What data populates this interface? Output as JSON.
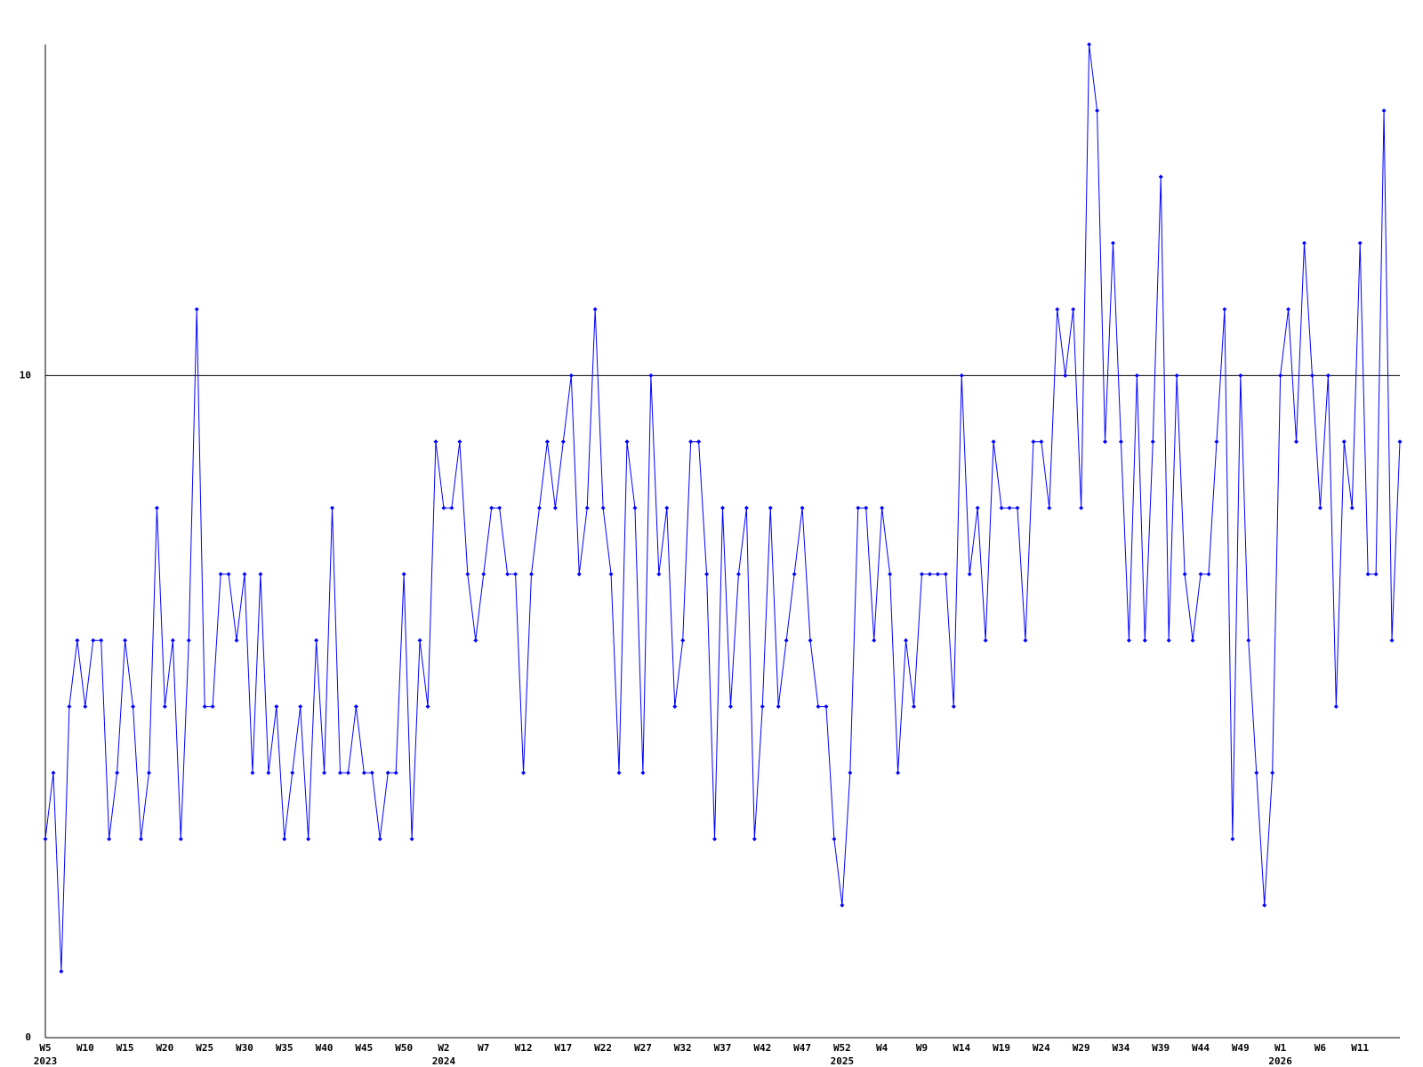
{
  "chart_data": {
    "type": "line",
    "categories": [
      "W5",
      null,
      null,
      null,
      null,
      "W10",
      null,
      null,
      null,
      null,
      "W15",
      null,
      null,
      null,
      null,
      "W20",
      null,
      null,
      null,
      null,
      "W25",
      null,
      null,
      null,
      null,
      "W30",
      null,
      null,
      null,
      null,
      "W35",
      null,
      null,
      null,
      null,
      "W40",
      null,
      null,
      null,
      null,
      "W45",
      null,
      null,
      null,
      null,
      "W50",
      null,
      null,
      null,
      null,
      "W2",
      null,
      null,
      null,
      null,
      "W7",
      null,
      null,
      null,
      null,
      "W12",
      null,
      null,
      null,
      null,
      "W17",
      null,
      null,
      null,
      null,
      "W22",
      null,
      null,
      null,
      null,
      "W27",
      null,
      null,
      null,
      null,
      "W32",
      null,
      null,
      null,
      null,
      "W37",
      null,
      null,
      null,
      null,
      "W42",
      null,
      null,
      null,
      null,
      "W47",
      null,
      null,
      null,
      null,
      "W52",
      null,
      null,
      null,
      null,
      "W4",
      null,
      null,
      null,
      null,
      "W9",
      null,
      null,
      null,
      null,
      "W14",
      null,
      null,
      null,
      null,
      "W19",
      null,
      null,
      null,
      null,
      "W24",
      null,
      null,
      null,
      null,
      "W29",
      null,
      null,
      null,
      null,
      "W34",
      null,
      null,
      null,
      null,
      "W39",
      null,
      null,
      null,
      null,
      "W44",
      null,
      null,
      null,
      null,
      "W49",
      null,
      null,
      null,
      null,
      "W1",
      null,
      null,
      null,
      null,
      "W6",
      null,
      null,
      null,
      null,
      "W11",
      null,
      null,
      null,
      null,
      null
    ],
    "year_labels": [
      "2023",
      null,
      null,
      null,
      null,
      null,
      null,
      null,
      null,
      null,
      null,
      null,
      null,
      null,
      null,
      null,
      null,
      null,
      null,
      null,
      null,
      null,
      null,
      null,
      null,
      null,
      null,
      null,
      null,
      null,
      null,
      null,
      null,
      null,
      null,
      null,
      null,
      null,
      null,
      null,
      null,
      null,
      null,
      null,
      null,
      null,
      null,
      null,
      null,
      null,
      "2024",
      null,
      null,
      null,
      null,
      null,
      null,
      null,
      null,
      null,
      null,
      null,
      null,
      null,
      null,
      null,
      null,
      null,
      null,
      null,
      null,
      null,
      null,
      null,
      null,
      null,
      null,
      null,
      null,
      null,
      null,
      null,
      null,
      null,
      null,
      null,
      null,
      null,
      null,
      null,
      null,
      null,
      null,
      null,
      null,
      null,
      null,
      null,
      null,
      null,
      "2025",
      null,
      null,
      null,
      null,
      null,
      null,
      null,
      null,
      null,
      null,
      null,
      null,
      null,
      null,
      null,
      null,
      null,
      null,
      null,
      null,
      null,
      null,
      null,
      null,
      null,
      null,
      null,
      null,
      null,
      null,
      null,
      null,
      null,
      null,
      null,
      null,
      null,
      null,
      null,
      null,
      null,
      null,
      null,
      null,
      null,
      null,
      null,
      null,
      null,
      null,
      null,
      null,
      null,
      null,
      "2026",
      null,
      null,
      null,
      null,
      null,
      null,
      null,
      null,
      null,
      null,
      null,
      null,
      null,
      null,
      null
    ],
    "series": [
      {
        "color": "#0000ff",
        "values": [
          3,
          4,
          1,
          5,
          6,
          5,
          6,
          6,
          3,
          4,
          6,
          5,
          3,
          4,
          8,
          5,
          6,
          3,
          6,
          11,
          5,
          5,
          7,
          7,
          6,
          7,
          4,
          7,
          4,
          5,
          3,
          4,
          5,
          3,
          6,
          4,
          8,
          4,
          4,
          5,
          4,
          4,
          3,
          4,
          4,
          7,
          3,
          6,
          5,
          9,
          8,
          8,
          9,
          7,
          6,
          7,
          8,
          8,
          7,
          7,
          4,
          7,
          8,
          9,
          8,
          9,
          10,
          7,
          8,
          11,
          8,
          7,
          4,
          9,
          8,
          4,
          10,
          7,
          8,
          5,
          6,
          9,
          9,
          7,
          3,
          8,
          5,
          7,
          8,
          3,
          5,
          8,
          5,
          6,
          7,
          8,
          6,
          5,
          5,
          3,
          2,
          4,
          8,
          8,
          6,
          8,
          7,
          4,
          6,
          5,
          7,
          7,
          7,
          7,
          5,
          10,
          7,
          8,
          6,
          9,
          8,
          8,
          8,
          6,
          9,
          9,
          8,
          11,
          10,
          11,
          8,
          15,
          14,
          9,
          12,
          9,
          6,
          10,
          6,
          9,
          13,
          6,
          10,
          7,
          6,
          7,
          7,
          9,
          11,
          3,
          10,
          6,
          4,
          2,
          4,
          10,
          11,
          9,
          12,
          10,
          8,
          10,
          5,
          9,
          8,
          12,
          7,
          7,
          14,
          6,
          9
        ]
      }
    ],
    "ylim": [
      0,
      15
    ],
    "yticks": [
      0,
      10
    ]
  }
}
